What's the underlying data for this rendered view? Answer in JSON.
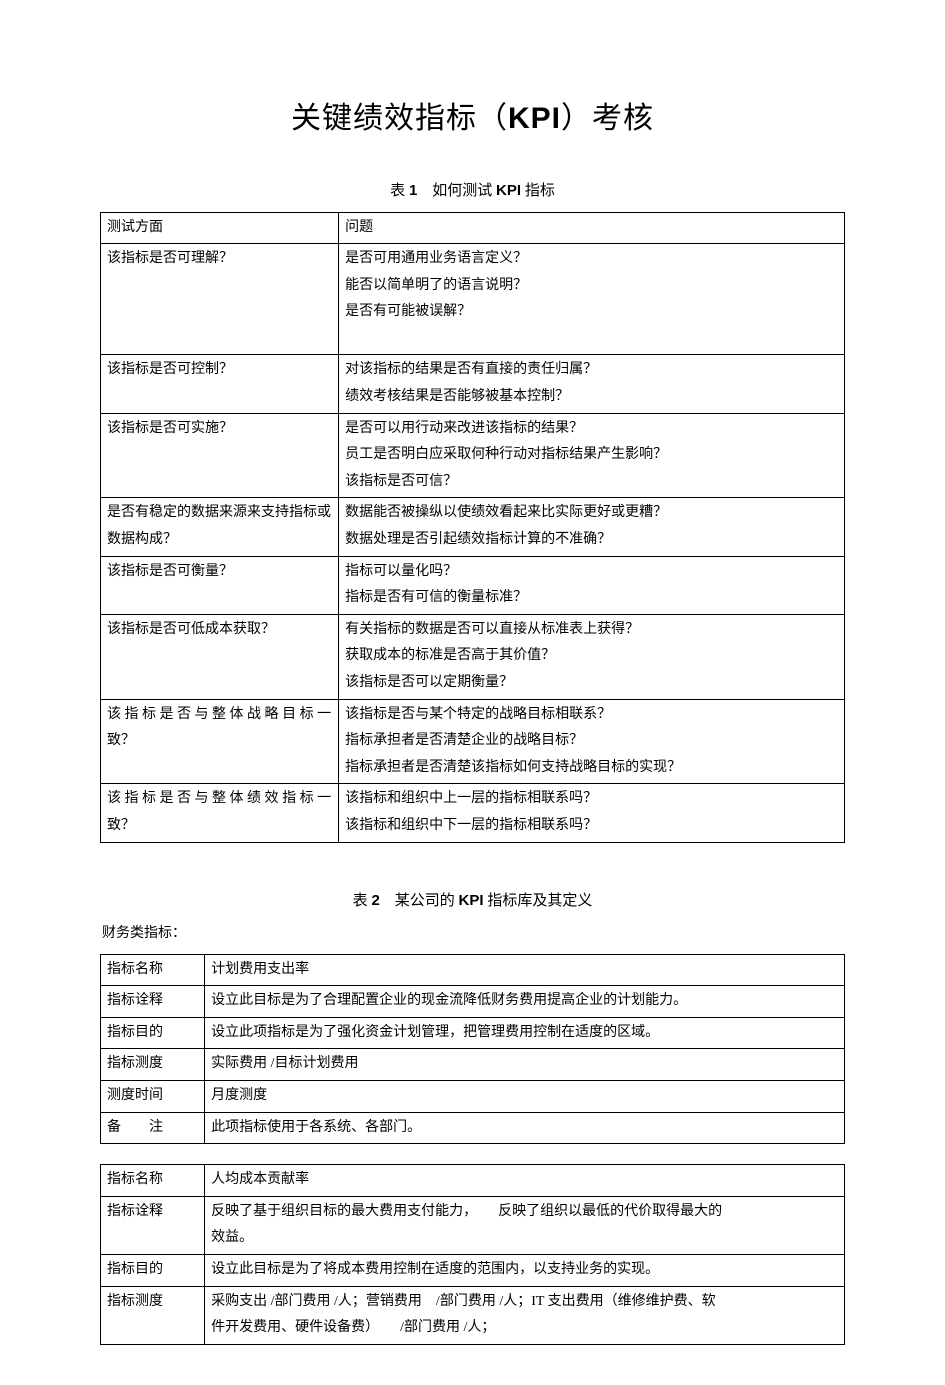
{
  "title_parts": [
    "关键绩效指标（",
    "KPI",
    "）考核"
  ],
  "table1_caption_parts": [
    "表 ",
    "1",
    "　如何测试 ",
    "KPI",
    " 指标"
  ],
  "table1": {
    "header": [
      "测试方面",
      "问题"
    ],
    "rows": [
      {
        "aspect": "该指标是否可理解？",
        "aspect_justified": false,
        "questions": [
          "是否可用通用业务语言定义？",
          "能否以简单明了的语言说明？",
          "是否有可能被误解？",
          ""
        ]
      },
      {
        "aspect": "该指标是否可控制？",
        "aspect_justified": false,
        "questions": [
          "对该指标的结果是否有直接的责任归属？",
          "绩效考核结果是否能够被基本控制？"
        ]
      },
      {
        "aspect": "该指标是否可实施？",
        "aspect_justified": false,
        "questions": [
          "是否可以用行动来改进该指标的结果？",
          "员工是否明白应采取何种行动对指标结果产生影响？",
          "该指标是否可信？"
        ]
      },
      {
        "aspect": "是否有稳定的数据来源来支持指标或数据构成？",
        "aspect_justified": false,
        "questions": [
          "数据能否被操纵以使绩效看起来比实际更好或更糟？",
          "数据处理是否引起绩效指标计算的不准确？"
        ]
      },
      {
        "aspect": "该指标是否可衡量？",
        "aspect_justified": false,
        "questions": [
          "指标可以量化吗？",
          "指标是否有可信的衡量标准？"
        ]
      },
      {
        "aspect": "该指标是否可低成本获取？",
        "aspect_justified": false,
        "questions": [
          "有关指标的数据是否可以直接从标准表上获得？",
          "获取成本的标准是否高于其价值？",
          "该指标是否可以定期衡量？"
        ]
      },
      {
        "aspect_lines": [
          "该指标是否与整体战略目标一",
          "致？"
        ],
        "aspect_justified": true,
        "questions": [
          "该指标是否与某个特定的战略目标相联系？",
          "指标承担者是否清楚企业的战略目标？",
          "指标承担者是否清楚该指标如何支持战略目标的实现？"
        ]
      },
      {
        "aspect_lines": [
          "该指标是否与整体绩效指标一",
          "致？"
        ],
        "aspect_justified": true,
        "questions": [
          "该指标和组织中上一层的指标相联系吗？",
          "该指标和组织中下一层的指标相联系吗？"
        ]
      }
    ]
  },
  "table2_caption_parts": [
    "表 ",
    "2",
    "　某公司的 ",
    "KPI",
    " 指标库及其定义"
  ],
  "subhead": "财务类指标：",
  "table2": {
    "rows": [
      {
        "label": "指标名称",
        "value": "计划费用支出率"
      },
      {
        "label": "指标诠释",
        "value": "设立此目标是为了合理配置企业的现金流降低财务费用提高企业的计划能力。"
      },
      {
        "label": "指标目的",
        "value": "设立此项指标是为了强化资金计划管理，把管理费用控制在适度的区域。"
      },
      {
        "label": "指标测度",
        "value": "实际费用 /目标计划费用"
      },
      {
        "label": "测度时间",
        "value": "月度测度"
      },
      {
        "label": "备　　注",
        "value": "此项指标使用于各系统、各部门。"
      }
    ]
  },
  "table3": {
    "rows": [
      {
        "label": "指标名称",
        "value": "人均成本贡献率"
      },
      {
        "label": "指标诠释",
        "value_lines": [
          "反映了基于组织目标的最大费用支付能力，　　反映了组织以最低的代价取得最大的",
          "效益。"
        ]
      },
      {
        "label": "指标目的",
        "value": "设立此目标是为了将成本费用控制在适度的范围内，以支持业务的实现。"
      },
      {
        "label": "指标测度",
        "value_lines": [
          "采购支出 /部门费用 /人；营销费用　/部门费用 /人；IT 支出费用（维修维护费、软",
          "件开发费用、硬件设备费）　　/部门费用 /人；"
        ]
      }
    ]
  }
}
